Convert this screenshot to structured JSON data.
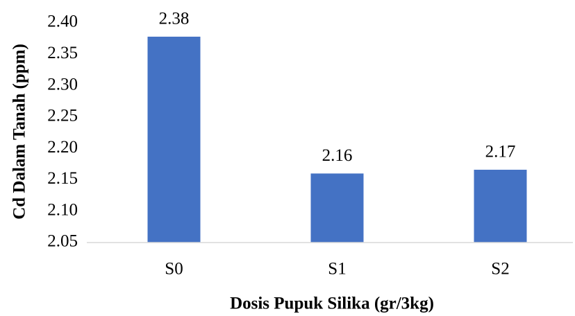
{
  "chart_data": {
    "type": "bar",
    "x_label": "Dosis Pupuk Silika (gr/3kg)",
    "y_label": "Cd Dalam Tanah (ppm)",
    "categories": [
      "S0",
      "S1",
      "S2"
    ],
    "values": [
      2.378,
      2.16,
      2.166
    ],
    "value_labels": [
      "2.38",
      "2.16",
      "2.17"
    ],
    "color": "#4472c4",
    "ylim": [
      2.05,
      2.4
    ],
    "yticks": [
      2.05,
      {
        "value": 2.1,
        "label": "2.10"
      },
      2.15,
      {
        "value": 2.2,
        "label": "2.20"
      },
      2.25,
      {
        "value": 2.3,
        "label": "2.30"
      },
      2.35,
      {
        "value": 2.4,
        "label": "2.40"
      }
    ],
    "grid": false
  }
}
